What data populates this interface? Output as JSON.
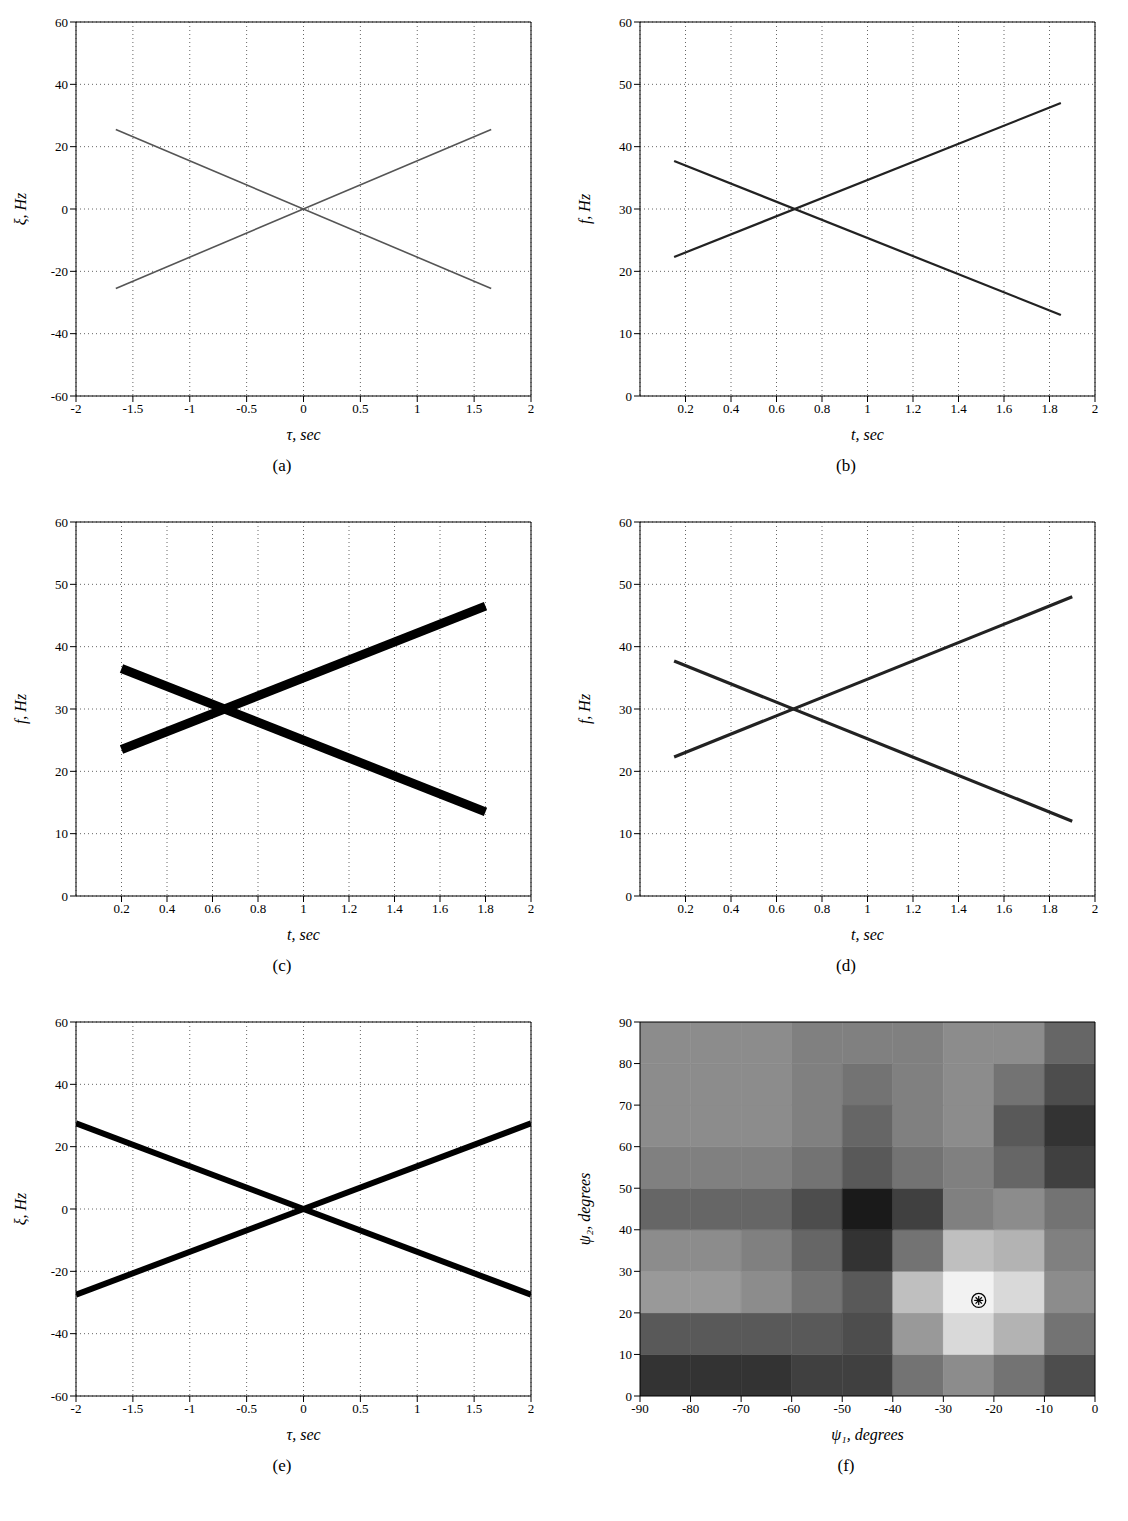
{
  "chart_data": [
    {
      "type": "line",
      "title": "(a)",
      "xlabel": "τ, sec",
      "ylabel": "ξ, Hz",
      "xlim": [
        -2,
        2
      ],
      "ylim": [
        -60,
        60
      ],
      "xticks": [
        -2,
        -1.5,
        -1,
        -0.5,
        0,
        0.5,
        1,
        1.5,
        2
      ],
      "yticks": [
        -60,
        -40,
        -20,
        0,
        20,
        40,
        60
      ],
      "grid": true,
      "x": [
        -1.65,
        1.65
      ],
      "series": [
        {
          "color": "#555555",
          "line_style": "solid",
          "values": [
            -25.5,
            25.5
          ]
        },
        {
          "color": "#555555",
          "line_style": "solid",
          "values": [
            25.5,
            -25.5
          ]
        }
      ]
    },
    {
      "type": "line",
      "title": "(b)",
      "xlabel": "t, sec",
      "ylabel": "f, Hz",
      "xlim": [
        0,
        2
      ],
      "ylim": [
        0,
        60
      ],
      "xticks": [
        0.2,
        0.4,
        0.6,
        0.8,
        1,
        1.2,
        1.4,
        1.6,
        1.8,
        2
      ],
      "yticks": [
        0,
        10,
        20,
        30,
        40,
        50,
        60
      ],
      "grid": true,
      "x": [
        0.15,
        1.85
      ],
      "series": [
        {
          "color": "#222222",
          "line_style": "solid",
          "values": [
            22.3,
            47
          ]
        },
        {
          "color": "#222222",
          "line_style": "solid",
          "values": [
            37.7,
            13
          ]
        }
      ]
    },
    {
      "type": "line",
      "title": "(c)",
      "xlabel": "t, sec",
      "ylabel": "f, Hz",
      "xlim": [
        0,
        2
      ],
      "ylim": [
        0,
        60
      ],
      "xticks": [
        0.2,
        0.4,
        0.6,
        0.8,
        1,
        1.2,
        1.4,
        1.6,
        1.8,
        2
      ],
      "yticks": [
        0,
        10,
        20,
        30,
        40,
        50,
        60
      ],
      "grid": true,
      "x": [
        0.2,
        1.8
      ],
      "series": [
        {
          "color": "#000000",
          "line_style": "solid",
          "values": [
            23.5,
            46.5
          ]
        },
        {
          "color": "#000000",
          "line_style": "solid",
          "values": [
            36.5,
            13.5
          ]
        }
      ]
    },
    {
      "type": "line",
      "title": "(d)",
      "xlabel": "t, sec",
      "ylabel": "f, Hz",
      "xlim": [
        0,
        2
      ],
      "ylim": [
        0,
        60
      ],
      "xticks": [
        0.2,
        0.4,
        0.6,
        0.8,
        1,
        1.2,
        1.4,
        1.6,
        1.8,
        2
      ],
      "yticks": [
        0,
        10,
        20,
        30,
        40,
        50,
        60
      ],
      "grid": true,
      "x": [
        0.15,
        1.9
      ],
      "series": [
        {
          "color": "#222222",
          "line_style": "solid",
          "values": [
            22.3,
            48
          ]
        },
        {
          "color": "#222222",
          "line_style": "solid",
          "values": [
            37.7,
            12
          ]
        }
      ]
    },
    {
      "type": "line",
      "title": "(e)",
      "xlabel": "τ, sec",
      "ylabel": "ξ, Hz",
      "xlim": [
        -2,
        2
      ],
      "ylim": [
        -60,
        60
      ],
      "xticks": [
        -2,
        -1.5,
        -1,
        -0.5,
        0,
        0.5,
        1,
        1.5,
        2
      ],
      "yticks": [
        -60,
        -40,
        -20,
        0,
        20,
        40,
        60
      ],
      "grid": true,
      "x": [
        -2,
        2
      ],
      "series": [
        {
          "color": "#000000",
          "line_style": "solid",
          "values": [
            -27.5,
            27.5
          ]
        },
        {
          "color": "#000000",
          "line_style": "solid",
          "values": [
            27.5,
            -27.5
          ]
        }
      ]
    },
    {
      "type": "heatmap",
      "title": "(f)",
      "xlabel": "ψ₁, degrees",
      "ylabel": "ψ₂, degrees",
      "xlim": [
        -90,
        0
      ],
      "ylim": [
        0,
        90
      ],
      "xticks": [
        -90,
        -80,
        -70,
        -60,
        -50,
        -40,
        -30,
        -20,
        -10,
        0
      ],
      "yticks": [
        0,
        10,
        20,
        30,
        40,
        50,
        60,
        70,
        80,
        90
      ],
      "grid": false,
      "cell_x": [
        -90,
        -80,
        -70,
        -60,
        -50,
        -40,
        -30,
        -20,
        -10,
        0
      ],
      "cell_y": [
        0,
        10,
        20,
        30,
        40,
        50,
        60,
        70,
        80,
        90
      ],
      "cells": [
        [
          0.2,
          0.2,
          0.2,
          0.25,
          0.25,
          0.45,
          0.55,
          0.45,
          0.3
        ],
        [
          0.35,
          0.35,
          0.35,
          0.35,
          0.3,
          0.6,
          0.85,
          0.7,
          0.45
        ],
        [
          0.6,
          0.6,
          0.55,
          0.45,
          0.35,
          0.75,
          0.95,
          0.85,
          0.55
        ],
        [
          0.55,
          0.55,
          0.5,
          0.4,
          0.2,
          0.45,
          0.75,
          0.7,
          0.5
        ],
        [
          0.4,
          0.4,
          0.4,
          0.3,
          0.1,
          0.25,
          0.5,
          0.55,
          0.45
        ],
        [
          0.5,
          0.5,
          0.5,
          0.45,
          0.35,
          0.45,
          0.5,
          0.4,
          0.25
        ],
        [
          0.55,
          0.55,
          0.55,
          0.5,
          0.4,
          0.5,
          0.55,
          0.35,
          0.2
        ],
        [
          0.55,
          0.55,
          0.55,
          0.5,
          0.45,
          0.5,
          0.55,
          0.45,
          0.3
        ],
        [
          0.55,
          0.55,
          0.55,
          0.5,
          0.5,
          0.5,
          0.55,
          0.55,
          0.4
        ]
      ],
      "zlim": [
        0,
        1
      ],
      "markers": [
        {
          "x": -23,
          "y": 23,
          "marker": "circled_asterisk",
          "color": "#000000"
        }
      ]
    }
  ]
}
